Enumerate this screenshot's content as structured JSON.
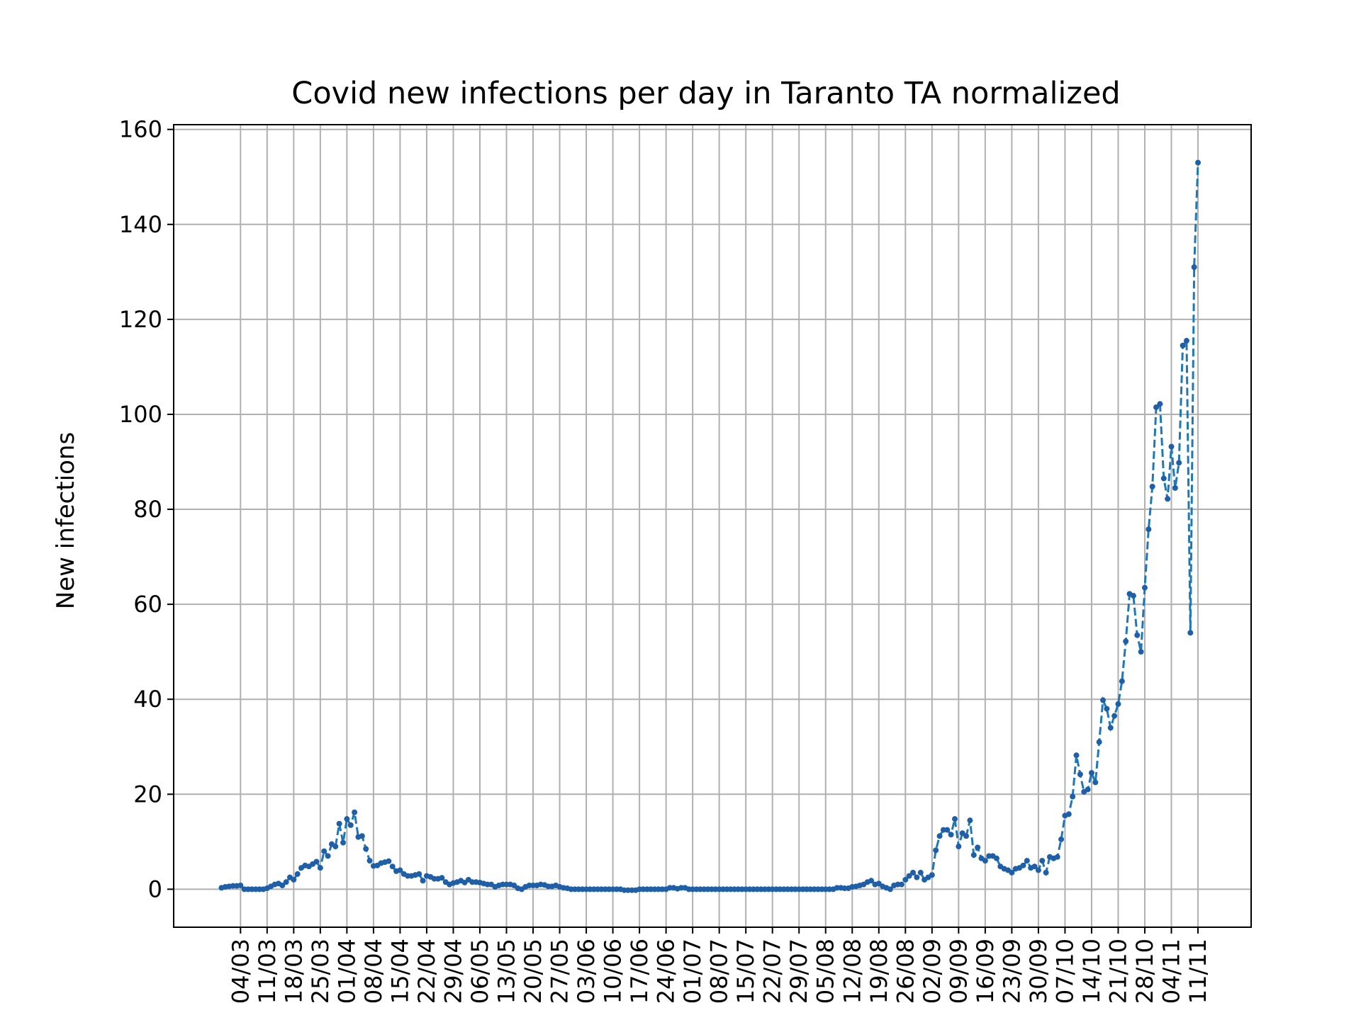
{
  "chart_data": {
    "type": "line",
    "title": "Covid new infections per day in Taranto TA normalized",
    "xlabel": "",
    "ylabel": "New infections",
    "ylim": [
      -8,
      161
    ],
    "yticks": [
      0,
      20,
      40,
      60,
      80,
      100,
      120,
      140,
      160
    ],
    "xtick_labels": [
      "04/03",
      "11/03",
      "18/03",
      "25/03",
      "01/04",
      "08/04",
      "15/04",
      "22/04",
      "29/04",
      "06/05",
      "13/05",
      "20/05",
      "27/05",
      "03/06",
      "10/06",
      "17/06",
      "24/06",
      "01/07",
      "08/07",
      "15/07",
      "22/07",
      "29/07",
      "05/08",
      "12/08",
      "19/08",
      "26/08",
      "02/09",
      "09/09",
      "16/09",
      "23/09",
      "30/09",
      "07/10",
      "14/10",
      "21/10",
      "28/10",
      "04/11",
      "11/11"
    ],
    "grid": true,
    "legend": "none",
    "line_style": "dashed",
    "marker": "dot",
    "colors": {
      "line": "#1f77b4",
      "marker": "#1f5fa8",
      "grid": "#b0b0b0",
      "axes": "#000000"
    },
    "x_start_label": "28/02",
    "series": [
      {
        "values": [
          0.3,
          0.5,
          0.6,
          0.7,
          0.7,
          0.8,
          0,
          0,
          0,
          0,
          0,
          0,
          0.2,
          0.6,
          1,
          1.2,
          0.8,
          1.5,
          2.5,
          2,
          3.2,
          4.5,
          5,
          4.8,
          5.3,
          5.8,
          4.5,
          8,
          7,
          9.5,
          9,
          13.8,
          9.8,
          14.8,
          13.5,
          16.2,
          11,
          11.2,
          8.5,
          6,
          4.9,
          5,
          5.5,
          5.7,
          5.9,
          4.8,
          3.8,
          4,
          3.2,
          2.8,
          2.8,
          3,
          3.2,
          1.8,
          2.8,
          2.6,
          2.2,
          2.2,
          2.4,
          1.5,
          1,
          1.3,
          1.5,
          1.8,
          1.4,
          2,
          1.5,
          1.5,
          1.4,
          1.2,
          1,
          1,
          0.5,
          0.8,
          1,
          1,
          1,
          0.8,
          0.2,
          0,
          0.5,
          0.8,
          0.8,
          0.8,
          1,
          0.9,
          0.6,
          0.6,
          0.8,
          0.5,
          0.3,
          0.2,
          0,
          0,
          0,
          0,
          0,
          0,
          0,
          0,
          0,
          0,
          0,
          0,
          0,
          0,
          -0.2,
          -0.2,
          -0.2,
          -0.2,
          0,
          0,
          0,
          0,
          0,
          0,
          0,
          0,
          0.3,
          0.3,
          0.1,
          0.3,
          0.3,
          0,
          0,
          0,
          0,
          0,
          0,
          0,
          0,
          0,
          0,
          0,
          0,
          0,
          0,
          0,
          0,
          0,
          0,
          0,
          0,
          0,
          0,
          0,
          0,
          0,
          0,
          0,
          0,
          0,
          0,
          0,
          0,
          0,
          0,
          0,
          0,
          0,
          0,
          0,
          0.3,
          0.3,
          0.2,
          0.2,
          0.5,
          0.6,
          0.8,
          1,
          1.5,
          1.8,
          1,
          1.2,
          0.6,
          0.3,
          0,
          0.8,
          1,
          1,
          2,
          2.8,
          3.5,
          2.5,
          3.5,
          2,
          2.5,
          3,
          8.2,
          11.2,
          12.5,
          12.5,
          11.5,
          14.8,
          9,
          11.8,
          11.2,
          14.5,
          7.2,
          8.8,
          6.5,
          6,
          7,
          7,
          6.5,
          4.8,
          4.3,
          4,
          3.5,
          4.3,
          4.5,
          5,
          6,
          4.5,
          4.8,
          4,
          6,
          3.5,
          6.8,
          6.5,
          6.8,
          10.5,
          15.5,
          15.8,
          19.5,
          28.2,
          24.2,
          20.5,
          21,
          24.5,
          22.5,
          31,
          39.8,
          38,
          34,
          36.5,
          39,
          43.8,
          52.2,
          62.2,
          61.8,
          53.5,
          50,
          63.5,
          75.8,
          84.8,
          101.5,
          102.2,
          86.5,
          82.2,
          93.2,
          84.5,
          89.8,
          114.5,
          115.5,
          54,
          131,
          153
        ]
      }
    ]
  }
}
